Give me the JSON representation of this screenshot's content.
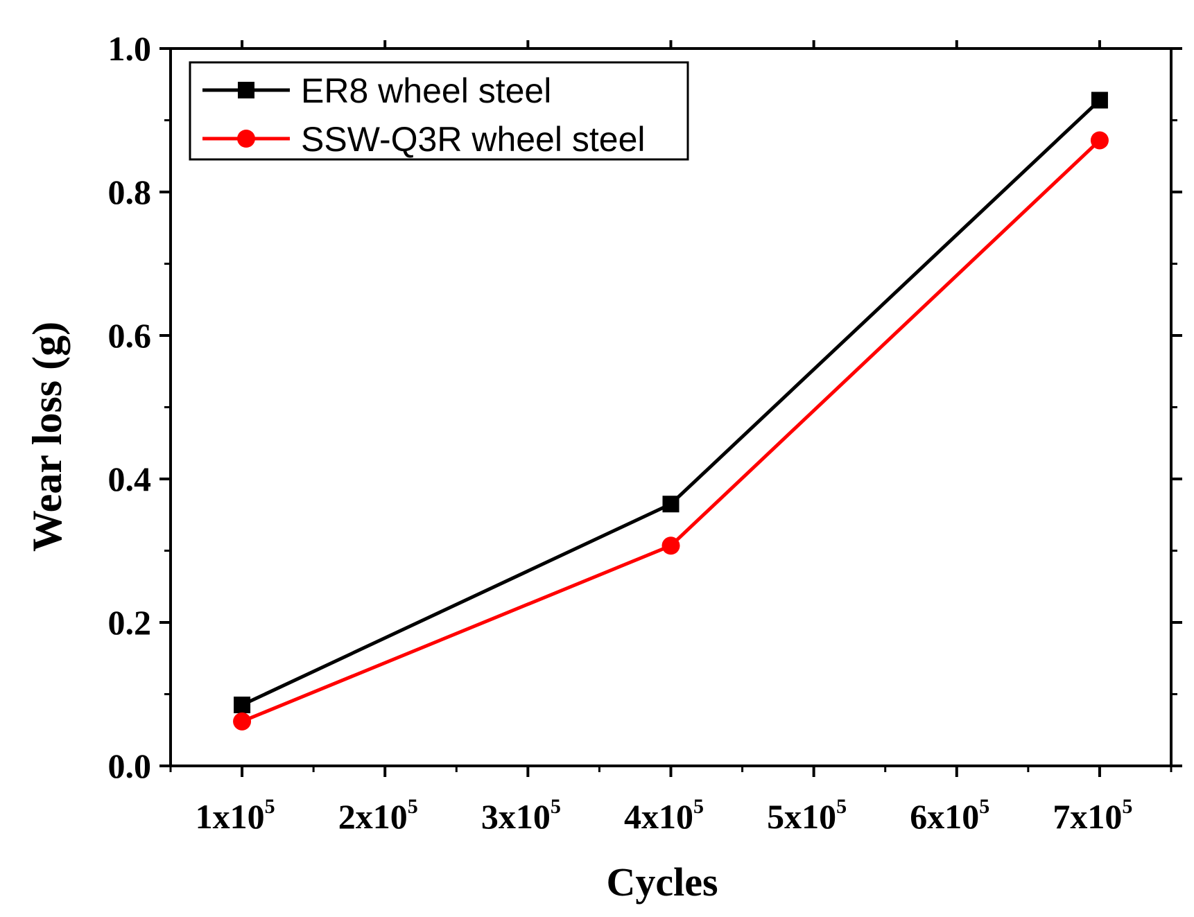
{
  "chart_data": {
    "type": "line",
    "title": "",
    "xlabel": "Cycles",
    "ylabel": "Wear loss (g)",
    "x": [
      100000,
      400000,
      700000
    ],
    "xlim": [
      50000,
      750000
    ],
    "ylim": [
      0.0,
      1.0
    ],
    "x_ticks": [
      {
        "value": 100000,
        "mantissa": "1x10",
        "exponent": "5"
      },
      {
        "value": 200000,
        "mantissa": "2x10",
        "exponent": "5"
      },
      {
        "value": 300000,
        "mantissa": "3x10",
        "exponent": "5"
      },
      {
        "value": 400000,
        "mantissa": "4x10",
        "exponent": "5"
      },
      {
        "value": 500000,
        "mantissa": "5x10",
        "exponent": "5"
      },
      {
        "value": 600000,
        "mantissa": "6x10",
        "exponent": "5"
      },
      {
        "value": 700000,
        "mantissa": "7x10",
        "exponent": "5"
      }
    ],
    "y_ticks": [
      {
        "value": 0.0,
        "label": "0.0"
      },
      {
        "value": 0.2,
        "label": "0.2"
      },
      {
        "value": 0.4,
        "label": "0.4"
      },
      {
        "value": 0.6,
        "label": "0.6"
      },
      {
        "value": 0.8,
        "label": "0.8"
      },
      {
        "value": 1.0,
        "label": "1.0"
      }
    ],
    "series": [
      {
        "name": "ER8 wheel steel",
        "color": "#000000",
        "marker": "square",
        "values": [
          0.085,
          0.365,
          0.928
        ]
      },
      {
        "name": "SSW-Q3R wheel steel",
        "color": "#ff0000",
        "marker": "circle",
        "values": [
          0.062,
          0.307,
          0.872
        ]
      }
    ],
    "legend": "top-left",
    "grid": false
  }
}
